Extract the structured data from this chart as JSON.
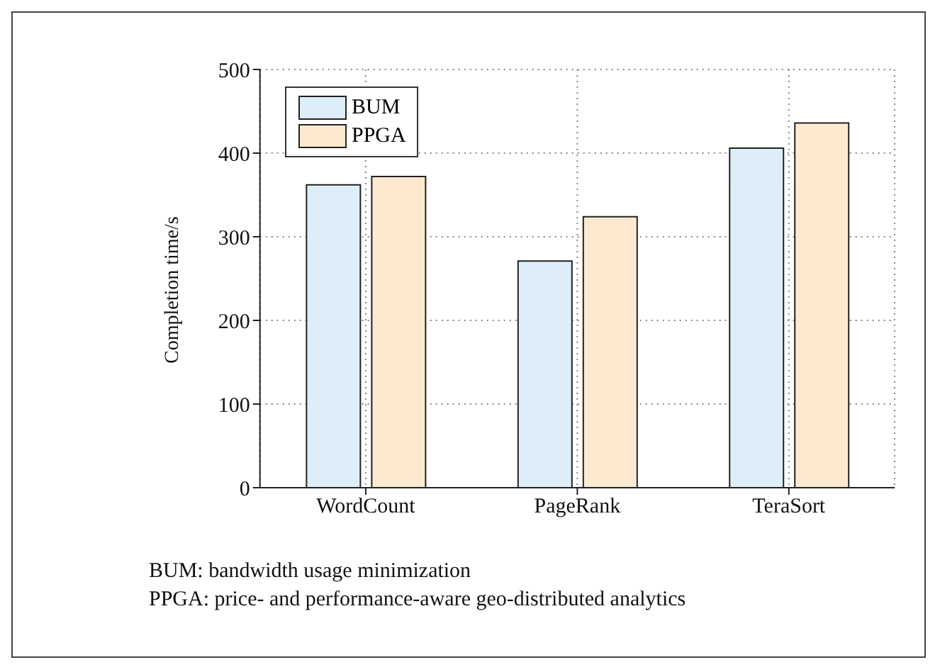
{
  "chart_data": {
    "type": "bar",
    "ylabel": "Completion time/s",
    "categories": [
      "WordCount",
      "PageRank",
      "TeraSort"
    ],
    "series": [
      {
        "name": "BUM",
        "color": "#ddeef8",
        "values": [
          362,
          271,
          406
        ]
      },
      {
        "name": "PPGA",
        "color": "#fde9d0",
        "values": [
          372,
          324,
          436
        ]
      }
    ],
    "ylim": [
      0,
      500
    ],
    "yticks": [
      0,
      100,
      200,
      300,
      400,
      500
    ],
    "grid": true,
    "legend": "top left",
    "annotations": [
      "BUM: bandwidth usage minimization",
      "PPGA: price- and performance-aware geo-distributed analytics"
    ]
  }
}
